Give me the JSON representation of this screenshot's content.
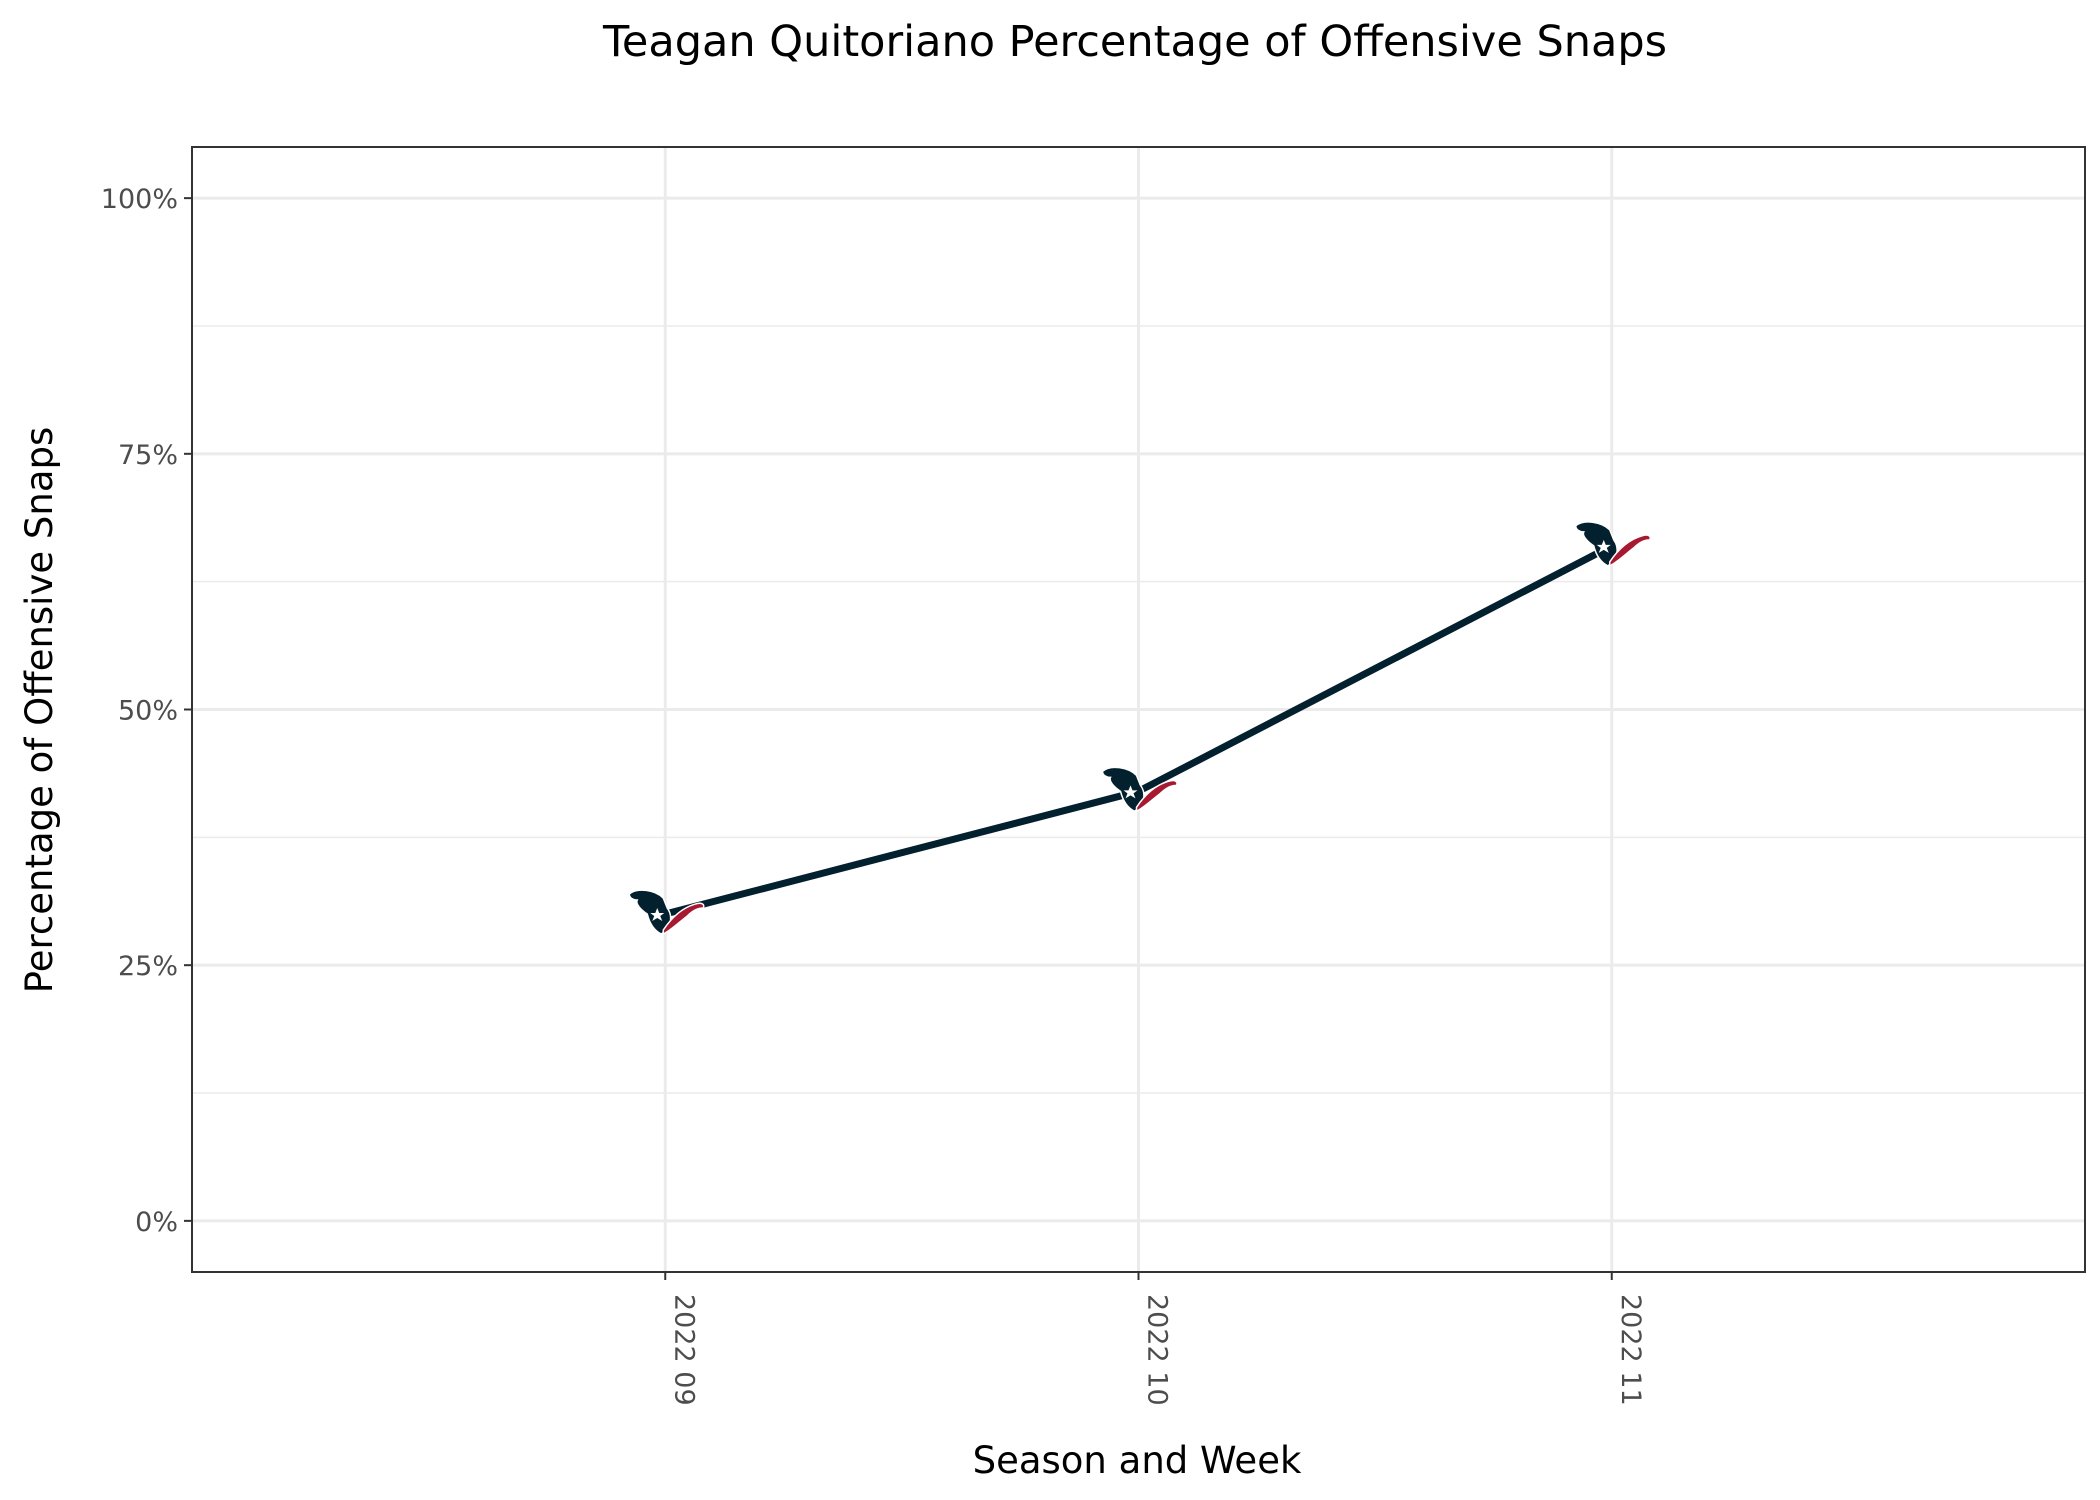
{
  "chart_data": {
    "type": "line",
    "title": "Teagan Quitoriano Percentage of Offensive Snaps",
    "xlabel": "Season and Week",
    "ylabel": "Percentage of Offensive Snaps",
    "categories": [
      "2022 09",
      "2022 10",
      "2022 11"
    ],
    "series": [
      {
        "values": [
          30,
          42,
          66
        ],
        "color": "#03202F"
      }
    ],
    "ylim": [
      0,
      100
    ],
    "yticks": [
      0,
      25,
      50,
      75,
      100
    ],
    "ytick_labels": [
      "0%",
      "25%",
      "50%",
      "75%",
      "100%"
    ],
    "grid": true,
    "legend": "none",
    "marker": "houston-texans-logo-icon",
    "colors": {
      "navy": "#03202F",
      "red": "#A71930",
      "grid": "#EBEBEB",
      "border": "#333333"
    }
  }
}
